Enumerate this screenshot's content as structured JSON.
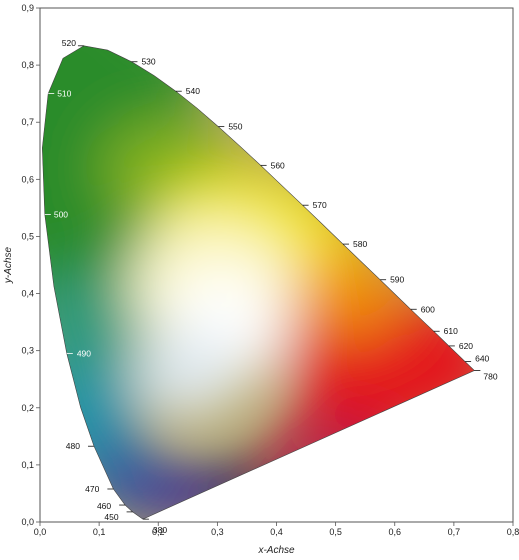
{
  "chart_data": {
    "type": "scatter",
    "title": "",
    "xlabel": "x-Achse",
    "ylabel": "y-Achse",
    "xlim": [
      0,
      0.8
    ],
    "ylim": [
      0,
      0.9
    ],
    "x_ticks": [
      "0,0",
      "0,1",
      "0,2",
      "0,3",
      "0,4",
      "0,5",
      "0,6",
      "0,7",
      "0,8"
    ],
    "y_ticks": [
      "0,0",
      "0,1",
      "0,2",
      "0,3",
      "0,4",
      "0,5",
      "0,6",
      "0,7",
      "0,8",
      "0,9"
    ],
    "grid": false,
    "series": [
      {
        "values": [
          {
            "label": "380",
            "x": 0.1741,
            "y": 0.005
          },
          {
            "label": "450",
            "x": 0.1566,
            "y": 0.0177
          },
          {
            "label": "460",
            "x": 0.144,
            "y": 0.0297
          },
          {
            "label": "470",
            "x": 0.1241,
            "y": 0.0578
          },
          {
            "label": "480",
            "x": 0.0913,
            "y": 0.1327
          },
          {
            "label": "490",
            "x": 0.0454,
            "y": 0.295
          },
          {
            "label": "500",
            "x": 0.0082,
            "y": 0.5384
          },
          {
            "label": "510",
            "x": 0.0139,
            "y": 0.7502
          },
          {
            "label": "520",
            "x": 0.0743,
            "y": 0.8338
          },
          {
            "label": "530",
            "x": 0.1547,
            "y": 0.8059
          },
          {
            "label": "540",
            "x": 0.2296,
            "y": 0.7543
          },
          {
            "label": "550",
            "x": 0.3016,
            "y": 0.6923
          },
          {
            "label": "560",
            "x": 0.3731,
            "y": 0.6245
          },
          {
            "label": "570",
            "x": 0.4441,
            "y": 0.5547
          },
          {
            "label": "580",
            "x": 0.5125,
            "y": 0.4866
          },
          {
            "label": "590",
            "x": 0.5752,
            "y": 0.4242
          },
          {
            "label": "600",
            "x": 0.627,
            "y": 0.3725
          },
          {
            "label": "610",
            "x": 0.6658,
            "y": 0.334
          },
          {
            "label": "620",
            "x": 0.6915,
            "y": 0.3083
          },
          {
            "label": "640",
            "x": 0.719,
            "y": 0.2809
          },
          {
            "label": "780",
            "x": 0.7347,
            "y": 0.2653
          }
        ]
      }
    ],
    "colors": {
      "red": "#e3141b",
      "green": "#2a8c2a",
      "yellow": "#f2e600",
      "cyan": "#1a93a8",
      "blue": "#3a2a9a",
      "violet": "#2a1a4a",
      "white": "#ffffff"
    }
  }
}
